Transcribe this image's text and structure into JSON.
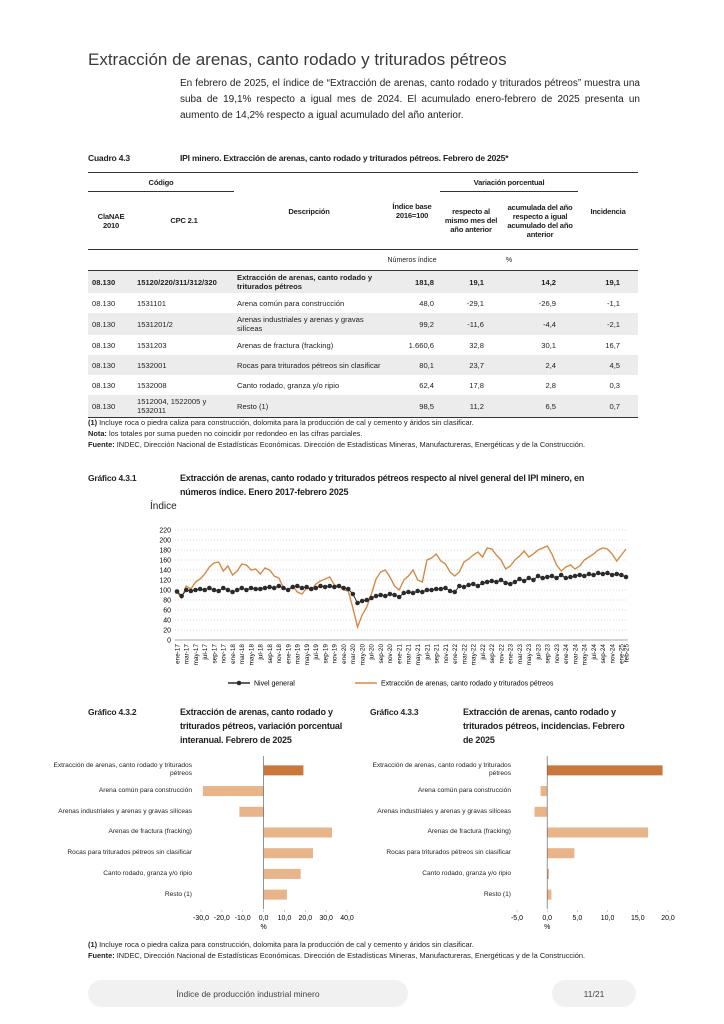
{
  "header": {
    "title": "Extracción de arenas, canto rodado y triturados pétreos",
    "intro": "En febrero de 2025, el índice de “Extracción de arenas, canto rodado y triturados pétreos” muestra una suba de 19,1% respecto a igual mes de 2024. El acumulado enero-febrero de 2025 presenta un aumento de 14,2% respecto a igual acumulado del año anterior."
  },
  "table": {
    "label": "Cuadro 4.3",
    "title": "IPI minero. Extracción de arenas, canto rodado y triturados pétreos. Febrero de 2025*",
    "group_headers": [
      "Código",
      "Variación porcentual"
    ],
    "columns": [
      "ClaNAE 2010",
      "CPC 2.1",
      "Descripción",
      "Índice base 2016=100",
      "respecto al mismo mes del año anterior",
      "acumulada del año respecto a igual acumulado del año anterior",
      "Incidencia"
    ],
    "units": [
      "Números índice",
      "%"
    ],
    "rows": [
      [
        "08.130",
        "15120/220/311/312/320",
        "Extracción de arenas, canto rodado y triturados pétreos",
        "181,8",
        "19,1",
        "14,2",
        "19,1"
      ],
      [
        "08.130",
        "1531101",
        "Arena común para construcción",
        "48,0",
        "-29,1",
        "-26,9",
        "-1,1"
      ],
      [
        "08.130",
        "1531201/2",
        "Arenas industriales y arenas y gravas silíceas",
        "99,2",
        "-11,6",
        "-4,4",
        "-2,1"
      ],
      [
        "08.130",
        "1531203",
        "Arenas de fractura (fracking)",
        "1.660,6",
        "32,8",
        "30,1",
        "16,7"
      ],
      [
        "08.130",
        "1532001",
        "Rocas para triturados pétreos sin clasificar",
        "80,1",
        "23,7",
        "2,4",
        "4,5"
      ],
      [
        "08.130",
        "1532008",
        "Canto rodado, granza y/o ripio",
        "62,4",
        "17,8",
        "2,8",
        "0,3"
      ],
      [
        "08.130",
        "1512004, 1522005 y 1532011",
        "Resto (1)",
        "98,5",
        "11,2",
        "6,5",
        "0,7"
      ]
    ],
    "notes": [
      {
        "label": "(1)",
        "text": "Incluye roca o piedra caliza para construcción, dolomita para la producción de cal y cemento y áridos sin clasificar."
      },
      {
        "label": "Nota:",
        "text": "los totales por suma pueden no coincidir por redondeo en las cifras parciales."
      },
      {
        "label": "Fuente:",
        "text": "INDEC, Dirección Nacional de Estadísticas Económicas. Dirección de Estadísticas Mineras, Manufactureras, Energéticas y de la Construcción."
      }
    ]
  },
  "chart_data": [
    {
      "type": "line",
      "label": "Gráfico 4.3.1",
      "title": "Extracción de arenas, canto rodado y triturados pétreos respecto al nivel general del IPI minero, en números índice. Enero 2017-febrero 2025",
      "ylabel": "Índice",
      "ylim": [
        0,
        220
      ],
      "yticks": [
        0,
        20,
        40,
        60,
        80,
        100,
        120,
        140,
        160,
        180,
        200,
        220
      ],
      "grid": true,
      "categories": [
        "ene-17",
        null,
        "mar-17",
        null,
        "may-17",
        null,
        "jul-17",
        null,
        "sep-17",
        null,
        "nov-17",
        null,
        "ene-18",
        null,
        "mar-18",
        null,
        "may-18",
        null,
        "jul-18",
        null,
        "sep-18",
        null,
        "nov-18",
        null,
        "ene-19",
        null,
        "mar-19",
        null,
        "may-19",
        null,
        "jul-19",
        null,
        "sep-19",
        null,
        "nov-19",
        null,
        "ene-20",
        null,
        "mar-20",
        null,
        "may-20",
        null,
        "jul-20",
        null,
        "sep-20",
        null,
        "nov-20",
        null,
        "ene-21",
        null,
        "mar-21",
        null,
        "may-21",
        null,
        "jul-21",
        null,
        "sep-21",
        null,
        "nov-21",
        null,
        "ene-22",
        null,
        "mar-22",
        null,
        "may-22",
        null,
        "jul-22",
        null,
        "sep-22",
        null,
        "nov-22",
        null,
        "ene-23",
        null,
        "mar-23",
        null,
        "may-23",
        null,
        "jul-23",
        null,
        "sep-23",
        null,
        "nov-23",
        null,
        "ene-24",
        null,
        "mar-24",
        null,
        "may-24",
        null,
        "jul-24",
        null,
        "sep-24",
        null,
        "nov-24",
        null,
        "ene-25",
        "feb-25"
      ],
      "series": [
        {
          "name": "Nivel general",
          "color": "#2b2b2b",
          "markers": true,
          "values": [
            97,
            88,
            100,
            98,
            100,
            102,
            100,
            104,
            100,
            98,
            104,
            100,
            96,
            100,
            104,
            100,
            104,
            102,
            102,
            104,
            106,
            104,
            108,
            104,
            100,
            106,
            108,
            104,
            106,
            102,
            104,
            108,
            106,
            108,
            106,
            108,
            104,
            102,
            92,
            74,
            78,
            80,
            84,
            88,
            90,
            88,
            92,
            90,
            86,
            94,
            96,
            94,
            98,
            96,
            100,
            100,
            102,
            102,
            104,
            98,
            96,
            108,
            106,
            110,
            112,
            108,
            114,
            116,
            118,
            116,
            120,
            114,
            112,
            116,
            122,
            118,
            124,
            120,
            128,
            124,
            126,
            128,
            124,
            130,
            124,
            126,
            128,
            130,
            128,
            132,
            130,
            134,
            132,
            134,
            130,
            132,
            130,
            126
          ]
        },
        {
          "name": "Extracción de arenas, canto rodado y triturados pétreos",
          "color": "#d38a45",
          "markers": false,
          "values": [
            96,
            84,
            108,
            102,
            116,
            122,
            132,
            146,
            154,
            156,
            138,
            148,
            130,
            138,
            152,
            150,
            140,
            142,
            132,
            144,
            140,
            128,
            124,
            104,
            100,
            108,
            96,
            92,
            104,
            100,
            112,
            118,
            122,
            126,
            110,
            108,
            100,
            98,
            64,
            26,
            50,
            66,
            92,
            122,
            136,
            140,
            126,
            108,
            100,
            120,
            128,
            140,
            120,
            116,
            160,
            164,
            172,
            158,
            152,
            136,
            128,
            136,
            156,
            162,
            170,
            176,
            166,
            184,
            182,
            170,
            160,
            142,
            148,
            160,
            168,
            178,
            166,
            172,
            180,
            184,
            188,
            172,
            150,
            138,
            146,
            150,
            142,
            148,
            160,
            166,
            172,
            180,
            184,
            182,
            172,
            158,
            170,
            182
          ]
        }
      ]
    },
    {
      "type": "bar",
      "orientation": "horizontal",
      "label": "Gráfico 4.3.2",
      "title": "Extracción de arenas, canto rodado y triturados pétreos, variación porcentual interanual. Febrero de 2025",
      "xlabel": "%",
      "categories": [
        "Extracción de arenas, canto rodado y triturados pétreos",
        "Arena común para construcción",
        "Arenas industriales y arenas y gravas silíceas",
        "Arenas de fractura (fracking)",
        "Rocas para triturados pétreos sin clasificar",
        "Canto rodado, granza y/o ripio",
        "Resto (1)"
      ],
      "values": [
        19.1,
        -29.1,
        -11.6,
        32.8,
        23.7,
        17.8,
        11.2
      ],
      "colors": [
        "#c9773b",
        "#e8b48a",
        "#e8b48a",
        "#e8b48a",
        "#e8b48a",
        "#e8b48a",
        "#e8b48a"
      ],
      "xlim": [
        -30,
        40
      ],
      "xticks": [
        {
          "value": -30,
          "label": "-30,0"
        },
        {
          "value": -20,
          "label": "-20,0"
        },
        {
          "value": -10,
          "label": "-10,0"
        },
        {
          "value": 0,
          "label": "0,0"
        },
        {
          "value": 10,
          "label": "10,0"
        },
        {
          "value": 20,
          "label": "20,0"
        },
        {
          "value": 30,
          "label": "30,0"
        },
        {
          "value": 40,
          "label": "40,0"
        }
      ]
    },
    {
      "type": "bar",
      "orientation": "horizontal",
      "label": "Gráfico 4.3.3",
      "title": "Extracción de arenas, canto rodado y triturados pétreos, incidencias. Febrero de 2025",
      "xlabel": "%",
      "categories": [
        "Extracción de arenas, canto rodado y triturados pétreos",
        "Arena común para construcción",
        "Arenas industriales y arenas y gravas silíceas",
        "Arenas de fractura (fracking)",
        "Rocas para triturados pétreos sin clasificar",
        "Canto rodado, granza y/o ripio",
        "Resto (1)"
      ],
      "values": [
        19.1,
        -1.1,
        -2.1,
        16.7,
        4.5,
        0.3,
        0.7
      ],
      "colors": [
        "#c9773b",
        "#e8b48a",
        "#e8b48a",
        "#e8b48a",
        "#e8b48a",
        "#e8b48a",
        "#e8b48a"
      ],
      "xlim": [
        -5,
        20
      ],
      "xticks": [
        {
          "value": -5,
          "label": "-5,0"
        },
        {
          "value": 0,
          "label": "0,0"
        },
        {
          "value": 5,
          "label": "5,0"
        },
        {
          "value": 10,
          "label": "10,0"
        },
        {
          "value": 15,
          "label": "15,0"
        },
        {
          "value": 20,
          "label": "20,0"
        }
      ]
    }
  ],
  "footnotes": [
    {
      "label": "(1)",
      "text": "Incluye roca o piedra caliza para construcción, dolomita para la producción de cal y cemento y áridos sin clasificar."
    },
    {
      "label": "Fuente:",
      "text": "INDEC, Dirección Nacional de Estadísticas Económicas. Dirección de Estadísticas Mineras, Manufactureras, Energéticas y de la Construcción."
    }
  ],
  "footer": {
    "title": "Índice de producción industrial minero",
    "page": "11/21"
  }
}
